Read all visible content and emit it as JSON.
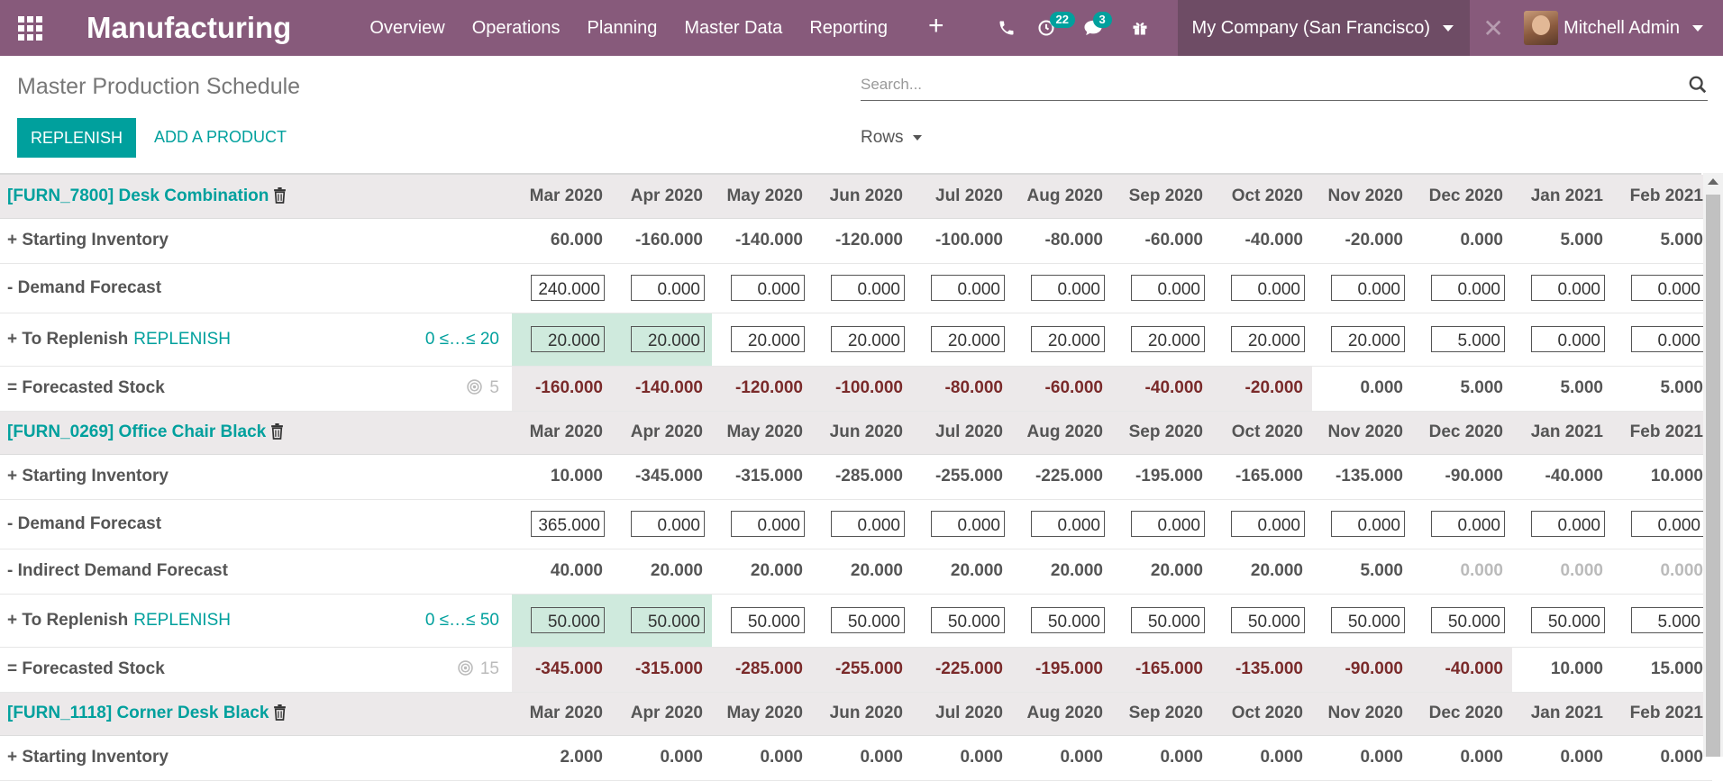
{
  "navbar": {
    "app_title": "Manufacturing",
    "menu": [
      "Overview",
      "Operations",
      "Planning",
      "Master Data",
      "Reporting"
    ],
    "plus": "+",
    "activity_count": "22",
    "message_count": "3",
    "company": "My Company (San Francisco)",
    "user": "Mitchell Admin",
    "brand_color": "#875a7b"
  },
  "control": {
    "title": "Master Production Schedule",
    "search_placeholder": "Search...",
    "replenish_label": "REPLENISH",
    "add_product_label": "ADD A PRODUCT",
    "rows_label": "Rows"
  },
  "months": [
    "Mar 2020",
    "Apr 2020",
    "May 2020",
    "Jun 2020",
    "Jul 2020",
    "Aug 2020",
    "Sep 2020",
    "Oct 2020",
    "Nov 2020",
    "Dec 2020",
    "Jan 2021",
    "Feb 2021"
  ],
  "products": [
    {
      "name": "[FURN_7800] Desk Combination",
      "rows": {
        "starting_inventory": {
          "label": "+ Starting Inventory",
          "values": [
            "60.000",
            "-160.000",
            "-140.000",
            "-120.000",
            "-100.000",
            "-80.000",
            "-60.000",
            "-40.000",
            "-20.000",
            "0.000",
            "5.000",
            "5.000"
          ]
        },
        "demand_forecast": {
          "label": "- Demand Forecast",
          "values": [
            "240.000",
            "0.000",
            "0.000",
            "0.000",
            "0.000",
            "0.000",
            "0.000",
            "0.000",
            "0.000",
            "0.000",
            "0.000",
            "0.000"
          ]
        },
        "to_replenish": {
          "label": "+ To Replenish",
          "link": "REPLENISH",
          "bounds": "0 ≤…≤ 20",
          "values": [
            "20.000",
            "20.000",
            "20.000",
            "20.000",
            "20.000",
            "20.000",
            "20.000",
            "20.000",
            "20.000",
            "5.000",
            "0.000",
            "0.000"
          ]
        },
        "forecasted_stock": {
          "label": "= Forecasted Stock",
          "safety": "5",
          "values": [
            "-160.000",
            "-140.000",
            "-120.000",
            "-100.000",
            "-80.000",
            "-60.000",
            "-40.000",
            "-20.000",
            "0.000",
            "5.000",
            "5.000",
            "5.000"
          ]
        }
      }
    },
    {
      "name": "[FURN_0269] Office Chair Black",
      "rows": {
        "starting_inventory": {
          "label": "+ Starting Inventory",
          "values": [
            "10.000",
            "-345.000",
            "-315.000",
            "-285.000",
            "-255.000",
            "-225.000",
            "-195.000",
            "-165.000",
            "-135.000",
            "-90.000",
            "-40.000",
            "10.000"
          ]
        },
        "demand_forecast": {
          "label": "- Demand Forecast",
          "values": [
            "365.000",
            "0.000",
            "0.000",
            "0.000",
            "0.000",
            "0.000",
            "0.000",
            "0.000",
            "0.000",
            "0.000",
            "0.000",
            "0.000"
          ]
        },
        "indirect_demand": {
          "label": "- Indirect Demand Forecast",
          "values": [
            "40.000",
            "20.000",
            "20.000",
            "20.000",
            "20.000",
            "20.000",
            "20.000",
            "20.000",
            "5.000",
            "0.000",
            "0.000",
            "0.000"
          ]
        },
        "to_replenish": {
          "label": "+ To Replenish",
          "link": "REPLENISH",
          "bounds": "0 ≤…≤ 50",
          "values": [
            "50.000",
            "50.000",
            "50.000",
            "50.000",
            "50.000",
            "50.000",
            "50.000",
            "50.000",
            "50.000",
            "50.000",
            "50.000",
            "5.000"
          ]
        },
        "forecasted_stock": {
          "label": "= Forecasted Stock",
          "safety": "15",
          "values": [
            "-345.000",
            "-315.000",
            "-285.000",
            "-255.000",
            "-225.000",
            "-195.000",
            "-165.000",
            "-135.000",
            "-90.000",
            "-40.000",
            "10.000",
            "15.000"
          ]
        }
      }
    },
    {
      "name": "[FURN_1118] Corner Desk Black",
      "rows": {
        "starting_inventory": {
          "label": "+ Starting Inventory",
          "values": [
            "2.000",
            "0.000",
            "0.000",
            "0.000",
            "0.000",
            "0.000",
            "0.000",
            "0.000",
            "0.000",
            "0.000",
            "0.000",
            "0.000"
          ]
        }
      }
    }
  ]
}
